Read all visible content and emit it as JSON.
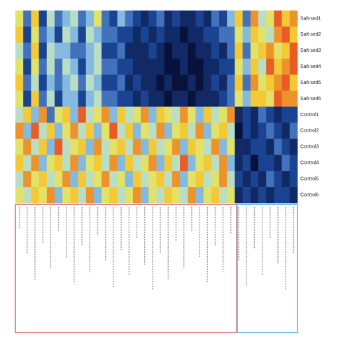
{
  "chart_data": {
    "type": "heatmap",
    "rows": [
      "Salt-sed1",
      "Salt-sed2",
      "Salt-sed3",
      "Salt-sed4",
      "Salt-sed5",
      "Salt-sed6",
      "Control1",
      "Control2",
      "Control3",
      "Control4",
      "Control5",
      "Control6"
    ],
    "values": [
      [
        0.6,
        0.3,
        0.7,
        0.2,
        0.5,
        0.3,
        0.4,
        0.5,
        0.3,
        0.4,
        0.6,
        0.3,
        0.2,
        0.4,
        0.3,
        0.2,
        0.1,
        0.2,
        0.3,
        0.1,
        0.2,
        0.1,
        0.1,
        0.2,
        0.1,
        0.3,
        0.2,
        0.4,
        0.7,
        0.3,
        0.8,
        0.5,
        0.6,
        0.9,
        0.7,
        0.8
      ],
      [
        0.7,
        0.2,
        0.6,
        0.3,
        0.4,
        0.2,
        0.5,
        0.4,
        0.2,
        0.5,
        0.4,
        0.3,
        0.3,
        0.2,
        0.2,
        0.1,
        0.2,
        0.1,
        0.2,
        0.1,
        0.1,
        0.0,
        0.1,
        0.1,
        0.2,
        0.2,
        0.3,
        0.3,
        0.6,
        0.4,
        0.7,
        0.6,
        0.5,
        0.8,
        0.9,
        0.7
      ],
      [
        0.5,
        0.3,
        0.7,
        0.2,
        0.5,
        0.4,
        0.4,
        0.3,
        0.3,
        0.4,
        0.5,
        0.2,
        0.2,
        0.3,
        0.1,
        0.1,
        0.1,
        0.2,
        0.1,
        0.0,
        0.1,
        0.1,
        0.0,
        0.1,
        0.1,
        0.2,
        0.1,
        0.3,
        0.7,
        0.3,
        0.6,
        0.7,
        0.8,
        0.6,
        0.7,
        0.9
      ],
      [
        0.6,
        0.2,
        0.6,
        0.3,
        0.5,
        0.3,
        0.5,
        0.4,
        0.2,
        0.4,
        0.5,
        0.3,
        0.3,
        0.2,
        0.2,
        0.1,
        0.1,
        0.1,
        0.1,
        0.0,
        0.0,
        0.1,
        0.0,
        0.0,
        0.1,
        0.1,
        0.2,
        0.2,
        0.6,
        0.4,
        0.7,
        0.5,
        0.9,
        0.7,
        0.8,
        0.9
      ],
      [
        0.7,
        0.3,
        0.5,
        0.2,
        0.4,
        0.3,
        0.4,
        0.5,
        0.3,
        0.5,
        0.4,
        0.2,
        0.2,
        0.3,
        0.1,
        0.2,
        0.1,
        0.1,
        0.0,
        0.1,
        0.0,
        0.0,
        0.1,
        0.0,
        0.1,
        0.2,
        0.1,
        0.3,
        0.7,
        0.3,
        0.8,
        0.6,
        0.7,
        0.8,
        0.9,
        0.7
      ],
      [
        0.6,
        0.2,
        0.7,
        0.3,
        0.5,
        0.2,
        0.4,
        0.4,
        0.2,
        0.4,
        0.5,
        0.3,
        0.3,
        0.2,
        0.2,
        0.1,
        0.2,
        0.1,
        0.1,
        0.0,
        0.1,
        0.1,
        0.0,
        0.1,
        0.1,
        0.1,
        0.2,
        0.3,
        0.6,
        0.4,
        0.7,
        0.7,
        0.6,
        0.9,
        0.8,
        0.8
      ],
      [
        0.5,
        0.7,
        0.4,
        0.8,
        0.3,
        0.6,
        0.7,
        0.4,
        0.9,
        0.5,
        0.6,
        0.8,
        0.4,
        0.7,
        0.5,
        0.6,
        0.8,
        0.4,
        0.7,
        0.6,
        0.5,
        0.8,
        0.6,
        0.4,
        0.7,
        0.5,
        0.6,
        0.8,
        0.1,
        0.2,
        0.1,
        0.3,
        0.2,
        0.1,
        0.2,
        0.2
      ],
      [
        0.8,
        0.4,
        0.9,
        0.5,
        0.7,
        0.4,
        0.6,
        0.8,
        0.5,
        0.7,
        0.4,
        0.6,
        0.9,
        0.5,
        0.7,
        0.4,
        0.6,
        0.5,
        0.8,
        0.4,
        0.6,
        0.7,
        0.5,
        0.8,
        0.4,
        0.6,
        0.7,
        0.5,
        0.0,
        0.2,
        0.1,
        0.2,
        0.3,
        0.2,
        0.1,
        0.3
      ],
      [
        0.6,
        0.8,
        0.5,
        0.7,
        0.4,
        0.9,
        0.5,
        0.6,
        0.7,
        0.4,
        0.8,
        0.5,
        0.6,
        0.7,
        0.5,
        0.8,
        0.4,
        0.7,
        0.5,
        0.6,
        0.8,
        0.4,
        0.7,
        0.6,
        0.5,
        0.8,
        0.4,
        0.6,
        0.1,
        0.1,
        0.2,
        0.2,
        0.1,
        0.3,
        0.2,
        0.1
      ],
      [
        0.7,
        0.5,
        0.8,
        0.4,
        0.6,
        0.7,
        0.5,
        0.8,
        0.4,
        0.6,
        0.7,
        0.5,
        0.8,
        0.4,
        0.7,
        0.5,
        0.6,
        0.8,
        0.4,
        0.7,
        0.5,
        0.9,
        0.4,
        0.6,
        0.7,
        0.5,
        0.8,
        0.4,
        0.1,
        0.2,
        0.0,
        0.2,
        0.2,
        0.1,
        0.3,
        0.2
      ],
      [
        0.5,
        0.8,
        0.6,
        0.7,
        0.5,
        0.6,
        0.8,
        0.4,
        0.7,
        0.5,
        0.6,
        0.8,
        0.5,
        0.6,
        0.4,
        0.7,
        0.5,
        0.6,
        0.7,
        0.5,
        0.8,
        0.4,
        0.6,
        0.7,
        0.5,
        0.6,
        0.8,
        0.5,
        0.2,
        0.1,
        0.2,
        0.1,
        0.3,
        0.2,
        0.1,
        0.2
      ],
      [
        0.6,
        0.5,
        0.7,
        0.6,
        0.8,
        0.4,
        0.6,
        0.7,
        0.5,
        0.8,
        0.4,
        0.6,
        0.7,
        0.5,
        0.6,
        0.8,
        0.4,
        0.6,
        0.5,
        0.7,
        0.6,
        0.5,
        0.8,
        0.4,
        0.6,
        0.7,
        0.5,
        0.6,
        0.1,
        0.2,
        0.1,
        0.2,
        0.1,
        0.2,
        0.2,
        0.1
      ]
    ],
    "zlim": [
      0,
      1
    ],
    "colorscale": [
      [
        0,
        "#08123a"
      ],
      [
        0.25,
        "#1f4fa8"
      ],
      [
        0.45,
        "#a6dcf2"
      ],
      [
        0.65,
        "#f6e43a"
      ],
      [
        1,
        "#e4261a"
      ]
    ]
  }
}
